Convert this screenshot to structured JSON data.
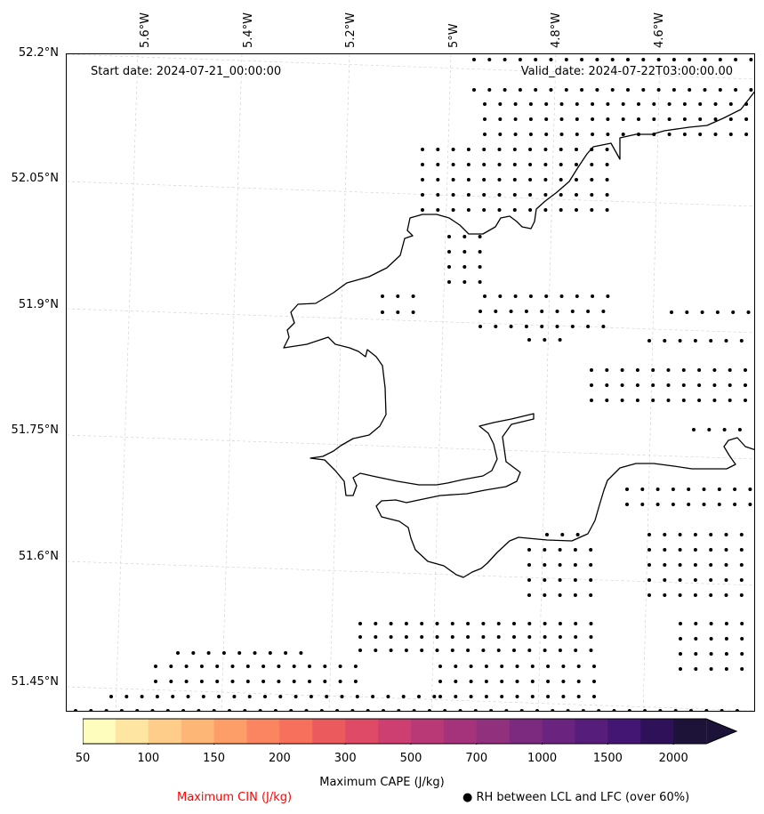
{
  "header": {
    "start_date": "Start date: 2024-07-21_00:00:00",
    "valid_date": "Valid_date: 2024-07-22T03:00:00.00"
  },
  "axes": {
    "lat_labels": [
      "52.2°N",
      "52.05°N",
      "51.9°N",
      "51.75°N",
      "51.6°N",
      "51.45°N"
    ],
    "lon_labels": [
      "5.6°W",
      "5.4°W",
      "5.2°W",
      "5°W",
      "4.8°W",
      "4.6°W"
    ]
  },
  "colorbar": {
    "label": "Maximum CAPE (J/kg)",
    "ticks": [
      "50",
      "100",
      "150",
      "200",
      "300",
      "500",
      "700",
      "1000",
      "1500",
      "2000"
    ],
    "colors": [
      "#fefdbe",
      "#fee5a1",
      "#fecd8a",
      "#feb677",
      "#fd9d67",
      "#fb8560",
      "#f6705c",
      "#eb5b5e",
      "#df4a66",
      "#cc3f70",
      "#b93977",
      "#a4337b",
      "#91307d",
      "#7c2a7f",
      "#6a247f",
      "#571d7b",
      "#441673",
      "#2e1158",
      "#1d1238"
    ]
  },
  "legend": {
    "cin_label": "Maximum CIN (J/kg)",
    "cin_color": "#ff0000",
    "rh_symbol": "●",
    "rh_label": "RH between LCL and LFC (over 60%)"
  }
}
